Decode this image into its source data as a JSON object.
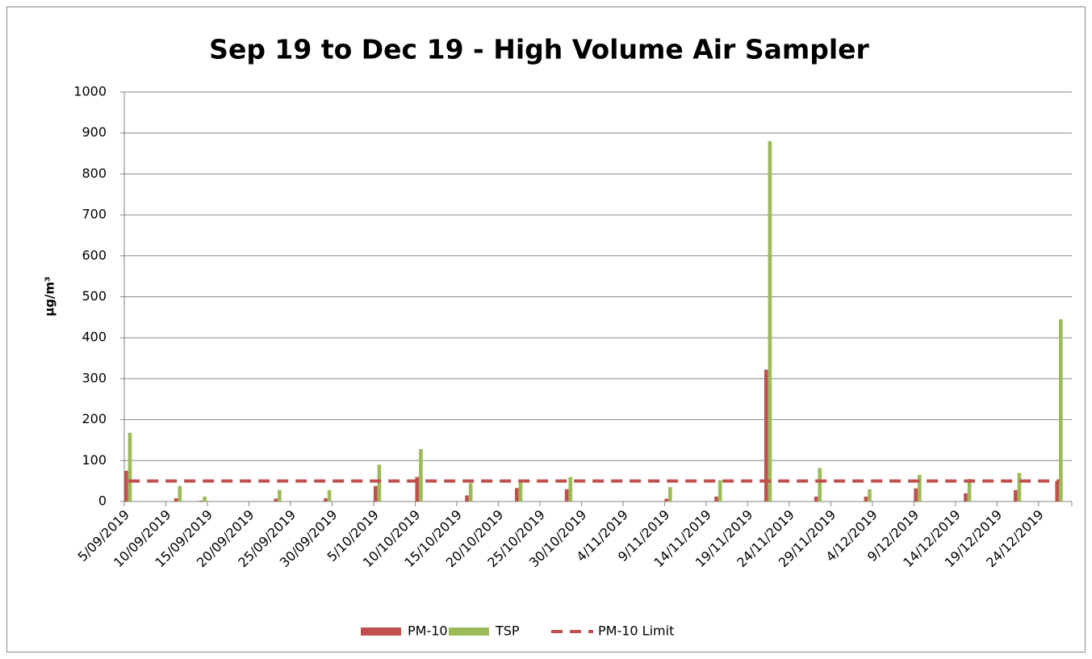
{
  "chart_data": {
    "type": "bar",
    "title": "Sep 19 to Dec 19 - High Volume Air Sampler",
    "y_label": "μg/m³",
    "x": [
      "5/09/2019",
      "11/09/2019",
      "14/09/2019",
      "23/09/2019",
      "29/09/2019",
      "5/10/2019",
      "10/10/2019",
      "16/10/2019",
      "22/10/2019",
      "28/10/2019",
      "9/11/2019",
      "15/11/2019",
      "21/11/2019",
      "27/11/2019",
      "3/12/2019",
      "9/12/2019",
      "15/12/2019",
      "21/12/2019",
      "26/12/2019"
    ],
    "series": [
      {
        "name": "PM-10",
        "type": "bar",
        "color": "#c0504d",
        "values": [
          75,
          8,
          2,
          7,
          8,
          38,
          60,
          15,
          33,
          30,
          7,
          12,
          322,
          12,
          12,
          32,
          20,
          28,
          50
        ]
      },
      {
        "name": "TSP",
        "type": "bar",
        "color": "#9bbb59",
        "values": [
          168,
          38,
          12,
          28,
          28,
          90,
          128,
          45,
          47,
          60,
          35,
          52,
          880,
          82,
          30,
          65,
          55,
          70,
          445
        ]
      },
      {
        "name": "PM-10 Limit",
        "type": "line",
        "dashed": true,
        "color": "#c0504d",
        "values": [
          50,
          50,
          50,
          50,
          50,
          50,
          50,
          50,
          50,
          50,
          50,
          50,
          50,
          50,
          50,
          50,
          50,
          50,
          50
        ]
      }
    ],
    "xlim": [
      "5/09/2019",
      "28/12/2019"
    ],
    "xticks": [
      "5/09/2019",
      "10/09/2019",
      "15/09/2019",
      "20/09/2019",
      "25/09/2019",
      "30/09/2019",
      "5/10/2019",
      "10/10/2019",
      "15/10/2019",
      "20/10/2019",
      "25/10/2019",
      "30/10/2019",
      "4/11/2019",
      "9/11/2019",
      "14/11/2019",
      "19/11/2019",
      "24/11/2019",
      "29/11/2019",
      "4/12/2019",
      "9/12/2019",
      "14/12/2019",
      "19/12/2019",
      "24/12/2019"
    ],
    "ylim": [
      0,
      1000
    ],
    "yticks": [
      0,
      100,
      200,
      300,
      400,
      500,
      600,
      700,
      800,
      900,
      1000
    ],
    "grid": true,
    "legend": "bottom"
  }
}
